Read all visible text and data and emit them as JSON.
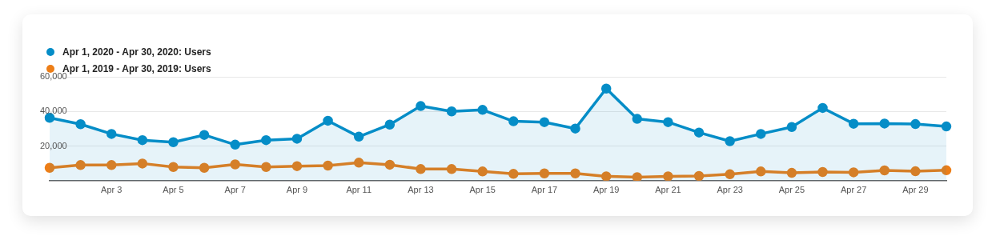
{
  "chart_data": {
    "type": "area",
    "legend": "top left",
    "grid": "y",
    "marker": "circle",
    "line_style": "solid",
    "categories": [
      null,
      null,
      "Apr 3",
      null,
      "Apr 5",
      null,
      "Apr 7",
      null,
      "Apr 9",
      null,
      "Apr 11",
      null,
      "Apr 13",
      null,
      "Apr 15",
      null,
      "Apr 17",
      null,
      "Apr 19",
      null,
      "Apr 21",
      null,
      "Apr 23",
      null,
      "Apr 25",
      null,
      "Apr 27",
      null,
      "Apr 29",
      null
    ],
    "ylim": [
      0,
      60000
    ],
    "yticks": [
      {
        "value": 0,
        "label": null
      },
      {
        "value": 20000,
        "label": "20,000"
      },
      {
        "value": 40000,
        "label": "40,000"
      },
      {
        "value": 60000,
        "label": "60,000"
      }
    ],
    "series": [
      {
        "name": "Apr 1, 2020 - Apr 30, 2020: Users",
        "color": "#058dc7",
        "values": [
          36300,
          32600,
          27000,
          23400,
          22200,
          26400,
          20800,
          23400,
          24200,
          34600,
          25400,
          32400,
          43100,
          40000,
          40900,
          34300,
          33800,
          30100,
          53200,
          35700,
          33800,
          27800,
          22800,
          27000,
          31000,
          42000,
          32900,
          33000,
          32700,
          31300
        ]
      },
      {
        "name": "Apr 1, 2019 - Apr 30, 2019: Users",
        "type": "line",
        "color": "#ed7e17",
        "values": [
          7400,
          9000,
          9000,
          9900,
          7900,
          7400,
          9400,
          7900,
          8400,
          8700,
          10400,
          9200,
          6700,
          6700,
          5300,
          3900,
          4200,
          4200,
          2500,
          2000,
          2500,
          2700,
          3700,
          5300,
          4500,
          5000,
          4800,
          5900,
          5400,
          6000
        ]
      }
    ]
  }
}
